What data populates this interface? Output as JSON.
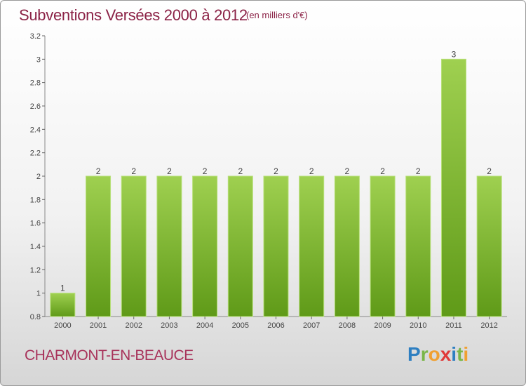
{
  "header": {
    "title": "Subventions Versées 2000 à 2012",
    "unit": "(en milliers d'€)"
  },
  "footer": {
    "city": "CHARMONT-EN-BEAUCE",
    "logo_letters": [
      {
        "ch": "P",
        "color": "#2e7fc1"
      },
      {
        "ch": "r",
        "color": "#7ab648"
      },
      {
        "ch": "o",
        "color": "#f0a030"
      },
      {
        "ch": "x",
        "color": "#e03a3a"
      },
      {
        "ch": "i",
        "color": "#2e7fc1"
      },
      {
        "ch": "t",
        "color": "#7ab648"
      },
      {
        "ch": "i",
        "color": "#f0a030"
      }
    ]
  },
  "chart_data": {
    "type": "bar",
    "categories": [
      "2000",
      "2001",
      "2002",
      "2003",
      "2004",
      "2005",
      "2006",
      "2007",
      "2008",
      "2009",
      "2010",
      "2011",
      "2012"
    ],
    "values": [
      1,
      2,
      2,
      2,
      2,
      2,
      2,
      2,
      2,
      2,
      2,
      3,
      2
    ],
    "data_labels": [
      "1",
      "2",
      "2",
      "2",
      "2",
      "2",
      "2",
      "2",
      "2",
      "2",
      "2",
      "3",
      "2"
    ],
    "ylim": [
      0.8,
      3.2
    ],
    "yticks": [
      0.8,
      1,
      1.2,
      1.4,
      1.6,
      1.8,
      2,
      2.2,
      2.4,
      2.6,
      2.8,
      3,
      3.2
    ],
    "ytick_labels": [
      "0.8",
      "1",
      "1.2",
      "1.4",
      "1.6",
      "1.8",
      "2",
      "2.2",
      "2.4",
      "2.6",
      "2.8",
      "3",
      "3.2"
    ],
    "grid": false,
    "bar_color_top": "#9fd050",
    "bar_color_bottom": "#5f9a18"
  }
}
